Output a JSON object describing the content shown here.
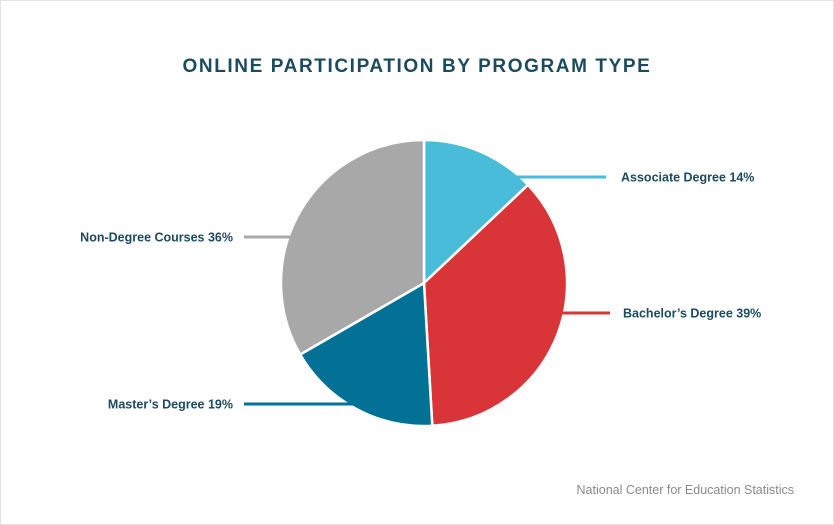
{
  "chart_data": {
    "type": "pie",
    "title": "ONLINE PARTICIPATION BY PROGRAM TYPE",
    "slices": [
      {
        "label": "Associate Degree 14%",
        "category": "Associate Degree",
        "value": 14,
        "color": "#48bcd8"
      },
      {
        "label": "Bachelor’s Degree 39%",
        "category": "Bachelor’s Degree",
        "value": 39,
        "color": "#d93539"
      },
      {
        "label": "Master’s Degree 19%",
        "category": "Master’s Degree",
        "value": 19,
        "color": "#037096"
      },
      {
        "label": "Non-Degree Courses 36%",
        "category": "Non-Degree Courses",
        "value": 36,
        "color": "#a8a8a8"
      }
    ]
  },
  "source": "National Center for Education Statistics"
}
